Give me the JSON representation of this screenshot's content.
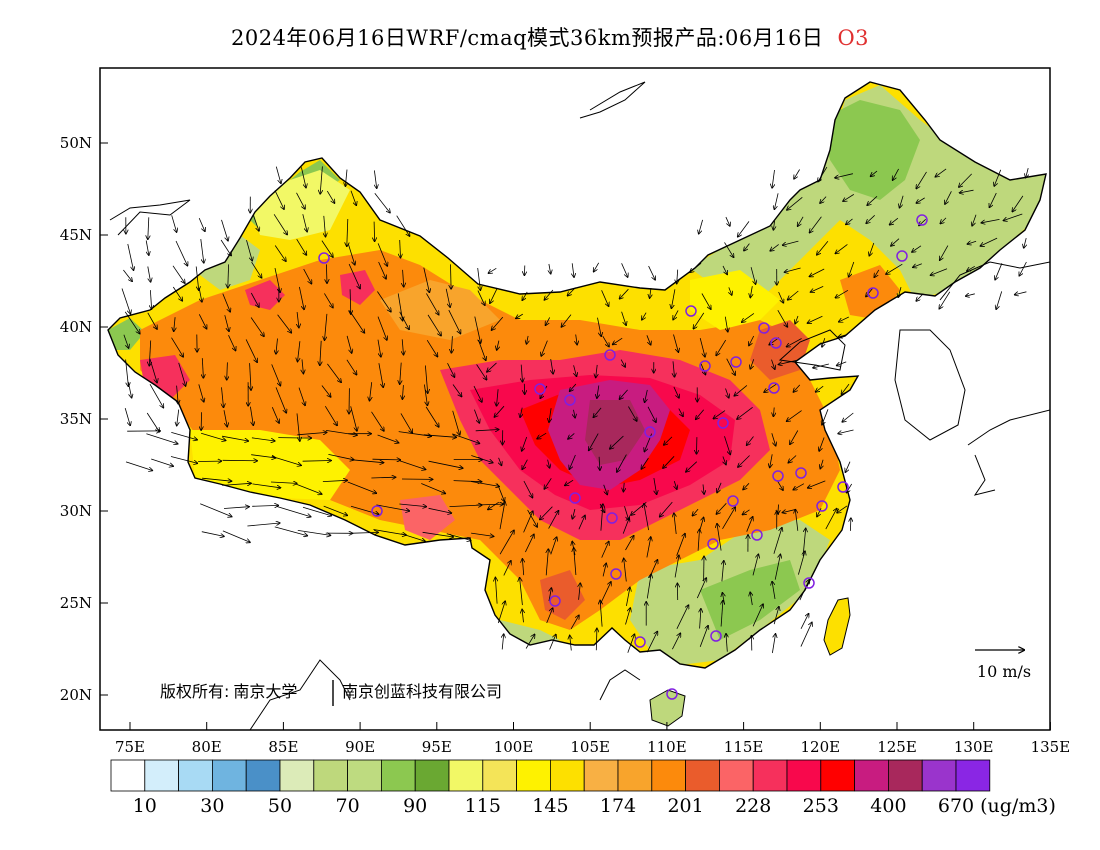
{
  "title": {
    "main": "2024年06月16日WRF/cmaq模式36km预报产品:06月16日",
    "species": "O3"
  },
  "map": {
    "lat_ticks": [
      "50N",
      "45N",
      "40N",
      "35N",
      "30N",
      "25N",
      "20N"
    ],
    "lon_ticks": [
      "75E",
      "80E",
      "85E",
      "90E",
      "95E",
      "100E",
      "105E",
      "110E",
      "115E",
      "120E",
      "125E",
      "130E",
      "135E"
    ],
    "copyright_label": "版权所有:",
    "org1": "南京大学",
    "org2": "南京创蓝科技有限公司",
    "wind_reference": "10 m/s"
  },
  "colorbar": {
    "colors": [
      "#ffffff",
      "#d3eefb",
      "#a8daf4",
      "#6fb4e0",
      "#4a90c8",
      "#dcebb8",
      "#bed87c",
      "#bedb80",
      "#8cc850",
      "#6aa832",
      "#f2f866",
      "#f4e458",
      "#fef200",
      "#fde000",
      "#f8b044",
      "#f8a42c",
      "#fc8a0c",
      "#ea5c2c",
      "#fb6466",
      "#f6305c",
      "#f8084c",
      "#ff0000",
      "#c81c80",
      "#a8285c",
      "#9a34cc",
      "#8a26e4"
    ],
    "labels": [
      "10",
      "30",
      "50",
      "70",
      "90",
      "115",
      "145",
      "174",
      "201",
      "228",
      "253",
      "400",
      "670"
    ],
    "unit": "(ug/m3)"
  },
  "colors": {
    "species_text": "#e03030",
    "station_marker": "#8020e0"
  }
}
